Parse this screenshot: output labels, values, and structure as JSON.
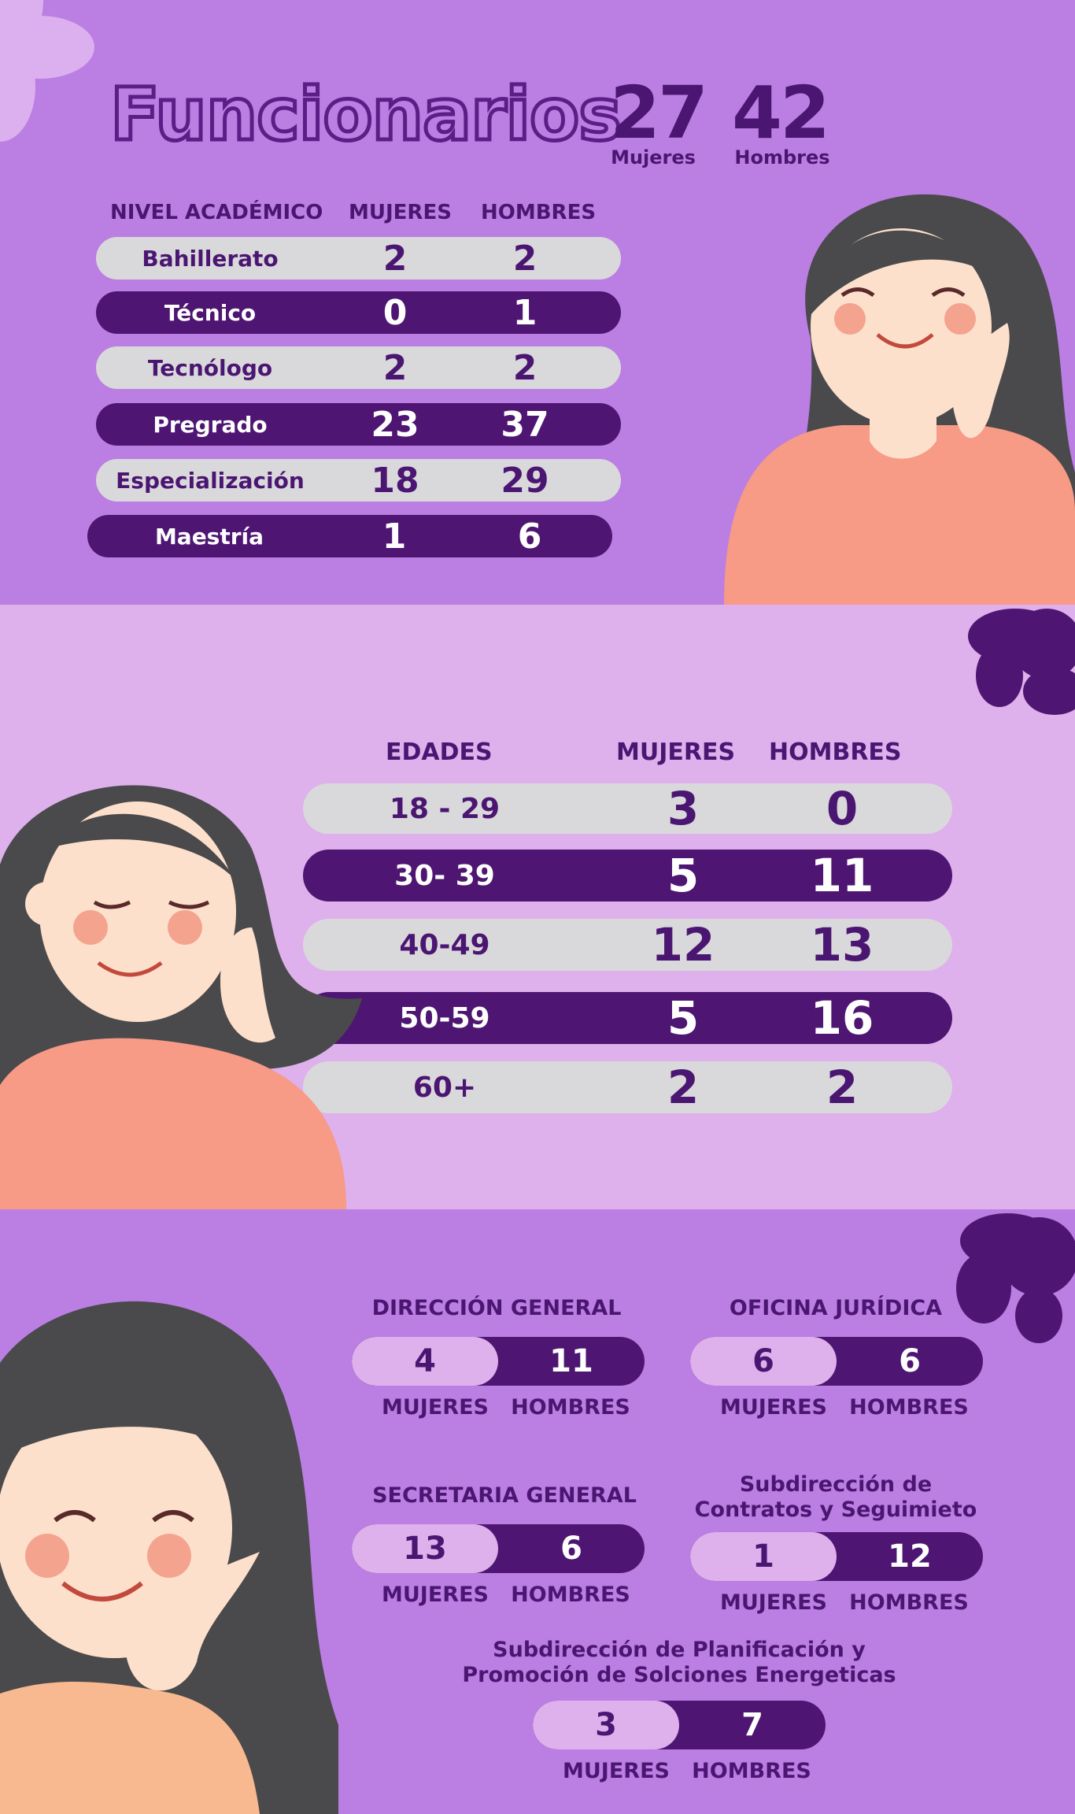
{
  "header": {
    "title": "Funcionarios",
    "women_total": "27",
    "women_label": "Mujeres",
    "men_total": "42",
    "men_label": "Hombres"
  },
  "academic": {
    "headers": [
      "NIVEL ACADÉMICO",
      "MUJERES",
      "HOMBRES"
    ],
    "rows": [
      {
        "label": "Bahillerato",
        "women": "2",
        "men": "2"
      },
      {
        "label": "Técnico",
        "women": "0",
        "men": "1"
      },
      {
        "label": "Tecnólogo",
        "women": "2",
        "men": "2"
      },
      {
        "label": "Pregrado",
        "women": "23",
        "men": "37"
      },
      {
        "label": "Especialización",
        "women": "18",
        "men": "29"
      },
      {
        "label": "Maestría",
        "women": "1",
        "men": "6"
      }
    ]
  },
  "ages": {
    "headers": [
      "EDADES",
      "MUJERES",
      "HOMBRES"
    ],
    "rows": [
      {
        "label": "18 - 29",
        "women": "3",
        "men": "0"
      },
      {
        "label": "30- 39",
        "women": "5",
        "men": "11"
      },
      {
        "label": "40-49",
        "women": "12",
        "men": "13"
      },
      {
        "label": "50-59",
        "women": "5",
        "men": "16"
      },
      {
        "label": "60+",
        "women": "2",
        "men": "2"
      }
    ]
  },
  "departments": {
    "women_caption": "MUJERES",
    "men_caption": "HOMBRES",
    "items": [
      {
        "name": "DIRECCIÓN GENERAL",
        "women": "4",
        "men": "11"
      },
      {
        "name": "OFICINA JURÍDICA",
        "women": "6",
        "men": "6"
      },
      {
        "name": "SECRETARIA GENERAL",
        "women": "13",
        "men": "6"
      },
      {
        "name": "Subdirección de Contratos y Seguimieto",
        "name_line1": "Subdirección de",
        "name_line2": "Contratos y Seguimieto",
        "women": "1",
        "men": "12"
      },
      {
        "name": "Subdirección de Planificación y Promoción de Solciones Energeticas",
        "name_line1": "Subdirección de Planificación y",
        "name_line2": "Promoción de Solciones Energeticas",
        "women": "3",
        "men": "7"
      }
    ]
  },
  "colors": {
    "background": "#bb7ee2",
    "light_band": "#deb0ec",
    "dark_purple": "#4e1672",
    "row_light": "#d9d9db",
    "skin": "#fde0cc",
    "shirt": "#f79a86",
    "hair": "#4a4a4c"
  },
  "icons": [
    "flower-icon",
    "woman-illustration"
  ]
}
